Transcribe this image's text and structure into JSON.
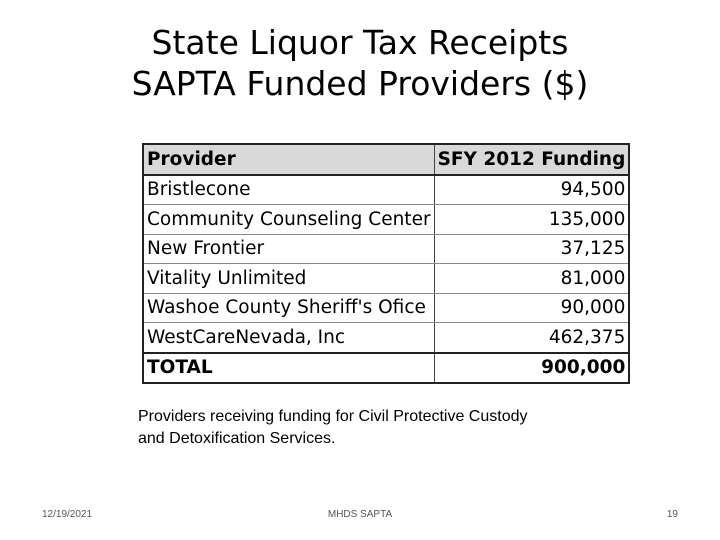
{
  "slide": {
    "title_line1": "State Liquor Tax Receipts",
    "title_line2": "SAPTA Funded Providers ($)",
    "caption_line1": "Providers receiving funding for Civil Protective Custody",
    "caption_line2": "and Detoxification Services."
  },
  "table": {
    "headers": [
      "Provider",
      "SFY 2012 Funding"
    ],
    "rows": [
      {
        "provider": "Bristlecone",
        "funding": "94,500"
      },
      {
        "provider": "Community Counseling Center",
        "funding": "135,000"
      },
      {
        "provider": "New Frontier",
        "funding": "37,125"
      },
      {
        "provider": "Vitality Unlimited",
        "funding": "81,000"
      },
      {
        "provider": "Washoe County Sheriff's Ofice",
        "funding": "90,000"
      },
      {
        "provider": "WestCareNevada, Inc",
        "funding": "462,375"
      }
    ],
    "total": {
      "provider": "TOTAL",
      "funding": "900,000"
    }
  },
  "footer": {
    "date": "12/19/2021",
    "center": "MHDS SAPTA",
    "page": "19"
  }
}
